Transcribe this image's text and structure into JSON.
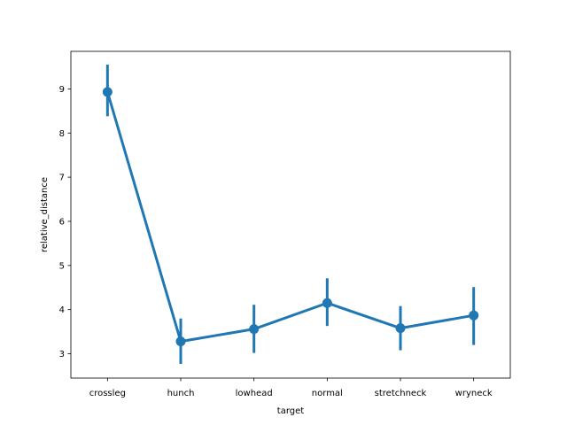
{
  "chart_data": {
    "type": "line",
    "xlabel": "target",
    "ylabel": "relative_distance",
    "categories": [
      "crossleg",
      "hunch",
      "lowhead",
      "normal",
      "stretchneck",
      "wryneck"
    ],
    "values": [
      8.93,
      3.28,
      3.56,
      4.15,
      3.58,
      3.87
    ],
    "error_low": [
      8.38,
      2.77,
      3.02,
      3.63,
      3.08,
      3.2
    ],
    "error_high": [
      9.55,
      3.8,
      4.11,
      4.71,
      4.08,
      4.51
    ],
    "ylim": [
      2.45,
      9.85
    ],
    "yticks": [
      "3",
      "4",
      "5",
      "6",
      "7",
      "8",
      "9"
    ],
    "color": "#1f77b4",
    "grid": false,
    "legend": "none"
  }
}
